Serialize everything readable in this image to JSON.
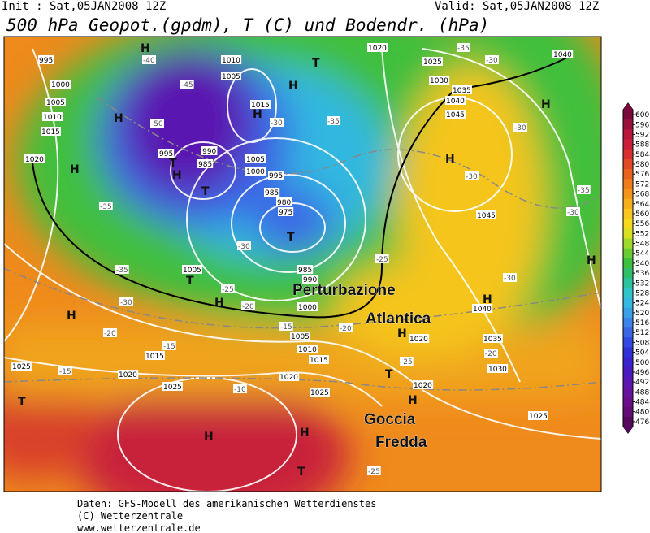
{
  "header": {
    "init": "Init : Sat,05JAN2008 12Z",
    "valid": "Valid: Sat,05JAN2008 12Z",
    "title": "500 hPa Geopot.(gpdm), T (C) und Bodendr. (hPa)"
  },
  "annotations": [
    "Perturbazione",
    "Atlantica",
    "Goccia",
    "Fredda"
  ],
  "map_labels": {
    "isobars": [
      "995",
      "1000",
      "1005",
      "1010",
      "1015",
      "1020",
      "1010",
      "1005",
      "1015",
      "995",
      "990",
      "985",
      "1005",
      "1000",
      "995",
      "985",
      "980",
      "975",
      "985",
      "990",
      "1005",
      "1000",
      "1005",
      "1010",
      "1015",
      "1015",
      "1020",
      "1025",
      "1020",
      "1025",
      "1020",
      "1025",
      "1020",
      "1025",
      "1030",
      "1035",
      "1040",
      "1045",
      "1045",
      "1040",
      "1035",
      "1030",
      "1025",
      "1040",
      "1020"
    ],
    "centers": [
      "H",
      "H",
      "H",
      "T",
      "H",
      "T",
      "H",
      "T",
      "H",
      "T",
      "H",
      "H",
      "H",
      "T",
      "H",
      "H",
      "T",
      "H",
      "H",
      "T",
      "T",
      "H",
      "H",
      "H"
    ],
    "temperatures": [
      "-40",
      "-45",
      "-50",
      "-35",
      "-30",
      "-25",
      "-20",
      "-35",
      "-30",
      "-35",
      "-30",
      "-30",
      "-30",
      "-25",
      "-20",
      "-15",
      "-15",
      "-20",
      "-15",
      "-10",
      "-35",
      "-30",
      "-35",
      "-30",
      "-30",
      "-25",
      "-20",
      "-25"
    ]
  },
  "colorbar": {
    "ticks": [
      600,
      596,
      592,
      588,
      584,
      580,
      576,
      572,
      568,
      564,
      560,
      556,
      552,
      548,
      544,
      540,
      536,
      532,
      528,
      524,
      520,
      516,
      512,
      508,
      504,
      500,
      496,
      492,
      488,
      484,
      480,
      476
    ],
    "colors": [
      "#7a0a3c",
      "#9b0f3b",
      "#b8163a",
      "#c8203a",
      "#d82f2f",
      "#e04a25",
      "#e8621e",
      "#ef7d1b",
      "#f3951b",
      "#f7ae1d",
      "#f9c51f",
      "#f5d820",
      "#d9df22",
      "#9fd92c",
      "#6acb34",
      "#3fbf3e",
      "#2fbf6a",
      "#2bc2a0",
      "#2ec5c8",
      "#33b8e0",
      "#3aa0e6",
      "#3d84e8",
      "#3a66e6",
      "#3348e0",
      "#2f30d6",
      "#3a22cc",
      "#4a1ac0",
      "#5a16b0",
      "#66129e",
      "#6a0f8a",
      "#620c74",
      "#55085e"
    ]
  },
  "footer": [
    "Daten: GFS-Modell des amerikanischen Wetterdienstes",
    "(C) Wetterzentrale",
    "www.wetterzentrale.de"
  ]
}
